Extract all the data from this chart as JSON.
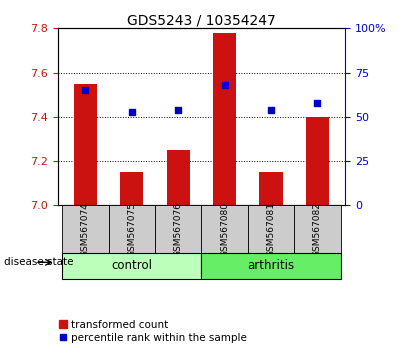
{
  "title": "GDS5243 / 10354247",
  "samples": [
    "GSM567074",
    "GSM567075",
    "GSM567076",
    "GSM567080",
    "GSM567081",
    "GSM567082"
  ],
  "transformed_count": [
    7.55,
    7.15,
    7.25,
    7.78,
    7.15,
    7.4
  ],
  "percentile_rank": [
    65,
    53,
    54,
    68,
    54,
    58
  ],
  "ylim_left": [
    7.0,
    7.8
  ],
  "ylim_right": [
    0,
    100
  ],
  "yticks_left": [
    7.0,
    7.2,
    7.4,
    7.6,
    7.8
  ],
  "yticks_right": [
    0,
    25,
    50,
    75,
    100
  ],
  "bar_color": "#cc1111",
  "scatter_color": "#0000cc",
  "groups": [
    {
      "label": "control",
      "indices": [
        0,
        1,
        2
      ],
      "color": "#bbffbb"
    },
    {
      "label": "arthritis",
      "indices": [
        3,
        4,
        5
      ],
      "color": "#66ee66"
    }
  ],
  "disease_state_label": "disease state",
  "legend_bar_label": "transformed count",
  "legend_scatter_label": "percentile rank within the sample",
  "left_tick_color": "#cc1111",
  "right_tick_color": "#0000cc",
  "title_fontsize": 10,
  "tick_fontsize": 8,
  "bar_width": 0.5,
  "xtick_bg_color": "#cccccc"
}
